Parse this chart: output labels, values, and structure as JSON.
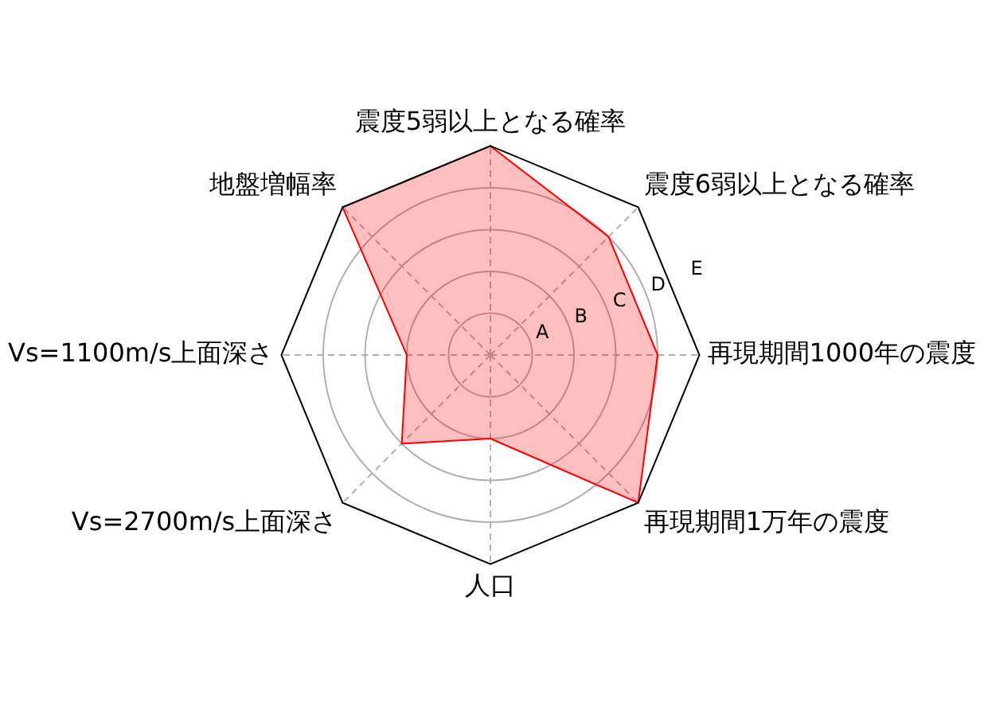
{
  "chart_data": {
    "type": "radar",
    "categories": [
      "震度5弱以上となる確率",
      "震度6弱以上となる確率",
      "再現期間1000年の震度",
      "再現期間1万年の震度",
      "人口",
      "Vs=2700m/s上面深さ",
      "Vs=1100m/s上面深さ",
      "地盤増幅率"
    ],
    "series": [
      {
        "color": "#ff0000",
        "values": [
          5,
          4,
          4,
          5,
          2,
          3,
          2,
          5
        ]
      }
    ],
    "ylim": [
      0,
      5
    ],
    "yticks": [
      {
        "value": 1,
        "label": "A"
      },
      {
        "value": 2,
        "label": "B"
      },
      {
        "value": 3,
        "label": "C"
      },
      {
        "value": 4,
        "label": "D"
      },
      {
        "value": 5,
        "label": "E"
      }
    ],
    "grid": true,
    "marker": "none",
    "legend": false
  }
}
